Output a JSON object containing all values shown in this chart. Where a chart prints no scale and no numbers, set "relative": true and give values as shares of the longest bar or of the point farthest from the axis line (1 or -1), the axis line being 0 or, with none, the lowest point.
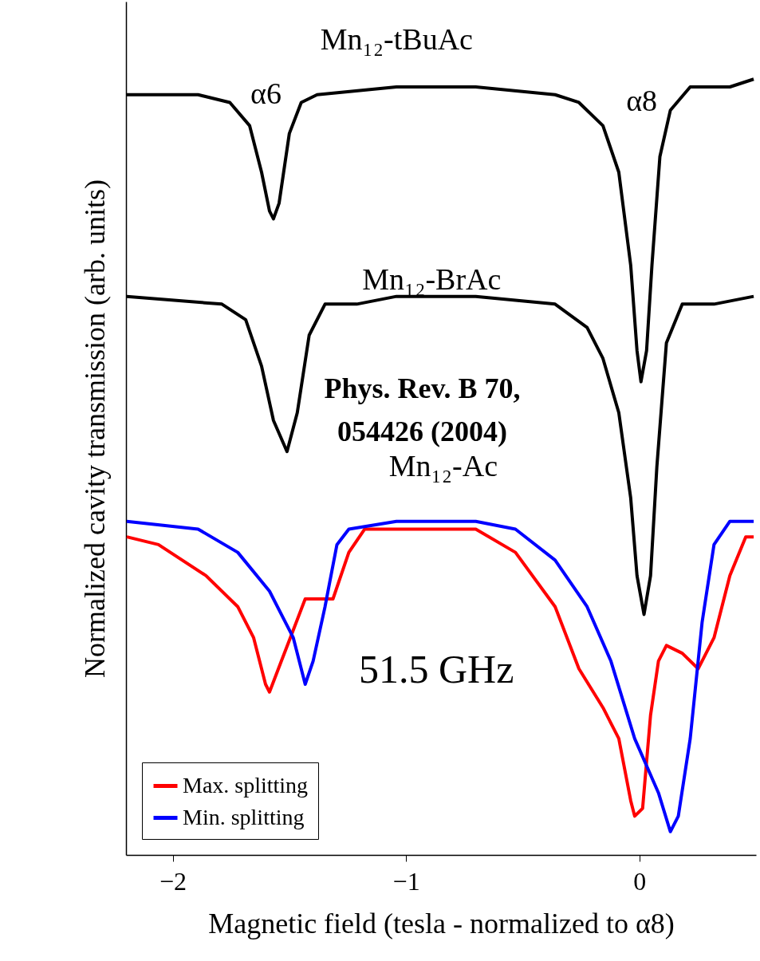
{
  "chart_data": {
    "type": "line",
    "relative": true,
    "xlabel": "Magnetic field (tesla - normalized to α8)",
    "ylabel": "Normalized cavity transmission (arb. units)",
    "xlim": [
      -2.2,
      0.5
    ],
    "xticks": [
      -2,
      -1,
      0
    ],
    "tick_labels": "x",
    "grid": false,
    "legend": "bottom left",
    "line_style": "solid",
    "marker": "none",
    "series": [
      {
        "color": "#000000",
        "x": [
          -2.197,
          -1.891,
          -1.755,
          -1.67,
          -1.619,
          -1.585,
          -1.568,
          -1.544,
          -1.5,
          -1.449,
          -1.381,
          -1.041,
          -0.701,
          -0.361,
          -0.259,
          -0.156,
          -0.088,
          -0.037,
          -0.01,
          0.007,
          0.031,
          0.054,
          0.088,
          0.133,
          0.218,
          0.388,
          0.49
        ],
        "values": [
          0.98,
          0.98,
          0.97,
          0.94,
          0.88,
          0.83,
          0.82,
          0.84,
          0.93,
          0.97,
          0.98,
          0.99,
          0.99,
          0.98,
          0.97,
          0.94,
          0.88,
          0.76,
          0.65,
          0.61,
          0.65,
          0.76,
          0.9,
          0.96,
          0.99,
          0.99,
          1.0
        ]
      },
      {
        "color": "#000000",
        "x": [
          -2.197,
          -1.789,
          -1.687,
          -1.619,
          -1.568,
          -1.51,
          -1.466,
          -1.415,
          -1.347,
          -1.211,
          -1.041,
          -0.701,
          -0.361,
          -0.224,
          -0.156,
          -0.088,
          -0.037,
          -0.01,
          0.02,
          0.048,
          0.075,
          0.116,
          0.184,
          0.32,
          0.49
        ],
        "values": [
          0.72,
          0.71,
          0.69,
          0.63,
          0.56,
          0.52,
          0.57,
          0.67,
          0.71,
          0.71,
          0.72,
          0.72,
          0.71,
          0.68,
          0.64,
          0.57,
          0.46,
          0.36,
          0.31,
          0.36,
          0.5,
          0.66,
          0.71,
          0.71,
          0.72
        ]
      },
      {
        "name": "Max. splitting",
        "color": "#ff0000",
        "x": [
          -2.197,
          -2.061,
          -1.857,
          -1.721,
          -1.653,
          -1.602,
          -1.585,
          -1.534,
          -1.483,
          -1.432,
          -1.381,
          -1.313,
          -1.245,
          -1.177,
          -1.041,
          -0.701,
          -0.531,
          -0.361,
          -0.259,
          -0.156,
          -0.088,
          -0.037,
          -0.02,
          0.014,
          0.048,
          0.082,
          0.116,
          0.184,
          0.252,
          0.32,
          0.388,
          0.456,
          0.49
        ],
        "values": [
          0.41,
          0.4,
          0.36,
          0.32,
          0.28,
          0.22,
          0.21,
          0.25,
          0.29,
          0.33,
          0.33,
          0.33,
          0.39,
          0.42,
          0.42,
          0.42,
          0.39,
          0.32,
          0.24,
          0.19,
          0.15,
          0.07,
          0.05,
          0.06,
          0.18,
          0.25,
          0.27,
          0.26,
          0.24,
          0.28,
          0.36,
          0.41,
          0.41
        ]
      },
      {
        "name": "Min. splitting",
        "color": "#0000ff",
        "x": [
          -2.197,
          -1.891,
          -1.721,
          -1.585,
          -1.483,
          -1.432,
          -1.398,
          -1.347,
          -1.296,
          -1.245,
          -1.041,
          -0.871,
          -0.701,
          -0.531,
          -0.361,
          -0.224,
          -0.122,
          -0.02,
          0.082,
          0.133,
          0.167,
          0.218,
          0.269,
          0.32,
          0.388,
          0.49
        ],
        "values": [
          0.43,
          0.42,
          0.39,
          0.34,
          0.28,
          0.22,
          0.25,
          0.32,
          0.4,
          0.42,
          0.43,
          0.43,
          0.43,
          0.42,
          0.38,
          0.32,
          0.25,
          0.15,
          0.08,
          0.03,
          0.05,
          0.15,
          0.3,
          0.4,
          0.43,
          0.43
        ]
      }
    ],
    "annotations": [
      "Mn₁₂-tBuAc",
      "α6",
      "α8",
      "Mn₁₂-BrAc",
      "Phys. Rev. B 70,",
      "054426 (2004)",
      "Mn₁₂-Ac",
      "51.5 GHz"
    ]
  }
}
